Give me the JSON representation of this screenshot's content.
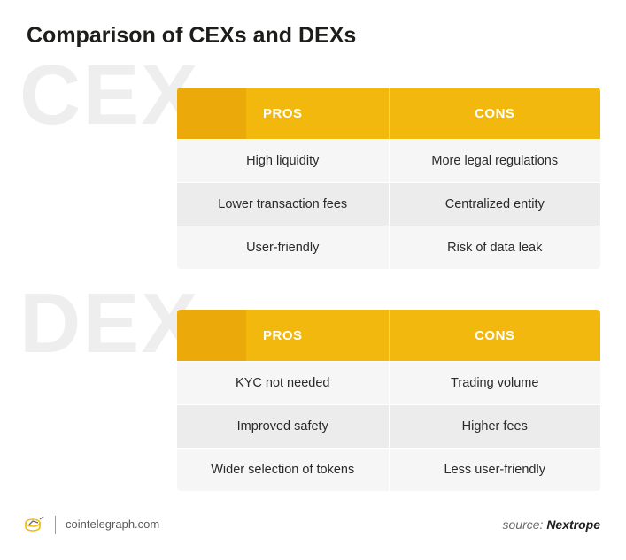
{
  "title": "Comparison of CEXs and DEXs",
  "sections": [
    {
      "watermark": "CEX",
      "headers": [
        "PROS",
        "CONS"
      ],
      "rows": [
        [
          "High liquidity",
          "More legal regulations"
        ],
        [
          "Lower transaction fees",
          "Centralized entity"
        ],
        [
          "User-friendly",
          "Risk of data leak"
        ]
      ]
    },
    {
      "watermark": "DEX",
      "headers": [
        "PROS",
        "CONS"
      ],
      "rows": [
        [
          "KYC not needed",
          "Trading volume"
        ],
        [
          "Improved safety",
          "Higher fees"
        ],
        [
          "Wider selection of tokens",
          "Less user-friendly"
        ]
      ]
    }
  ],
  "footer": {
    "site": "cointelegraph.com",
    "source_label": "source:",
    "source_name": "Nextrope"
  },
  "colors": {
    "header": "#f2b80e",
    "row_odd": "#ececec",
    "row_even": "#f6f6f6"
  }
}
